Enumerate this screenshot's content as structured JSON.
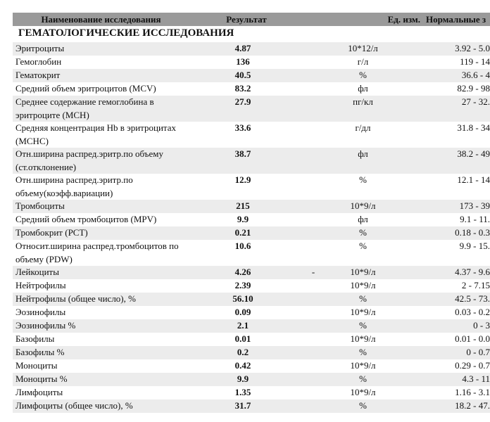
{
  "header": {
    "columns": [
      "Наименование исследования",
      "Результат",
      "Ед. изм.",
      "Нормальные з"
    ]
  },
  "section": "ГЕМАТОЛОГИЧЕСКИЕ ИССЛЕДОВАНИЯ",
  "rows": [
    {
      "name": "Эритроциты",
      "result": "4.87",
      "unit": "10*12/л",
      "range": "3.92 - 5.0"
    },
    {
      "name": "Гемоглобин",
      "result": "136",
      "unit": "г/л",
      "range": "119 - 14"
    },
    {
      "name": "Гематокрит",
      "result": "40.5",
      "unit": "%",
      "range": "36.6 - 4"
    },
    {
      "name": "Средний объем эритроцитов (MCV)",
      "result": "83.2",
      "unit": "фл",
      "range": "82.9 - 98"
    },
    {
      "name": "Среднее содержание гемоглобина в эритроците (MCH)",
      "result": "27.9",
      "unit": "пг/кл",
      "range": "27 - 32."
    },
    {
      "name": "Средняя концентрация Hb в эритроцитах (MCHC)",
      "result": "33.6",
      "unit": "г/дл",
      "range": "31.8 - 34"
    },
    {
      "name": "Отн.ширина распред.эритр.по объему (ст.отклонение)",
      "result": "38.7",
      "unit": "фл",
      "range": "38.2 - 49"
    },
    {
      "name": "Отн.ширина распред.эритр.по объему(коэфф.вариации)",
      "result": "12.9",
      "unit": "%",
      "range": "12.1 - 14"
    },
    {
      "name": "Тромбоциты",
      "result": "215",
      "unit": "10*9/л",
      "range": "173 - 39"
    },
    {
      "name": "Средний объем тромбоцитов (MPV)",
      "result": "9.9",
      "unit": "фл",
      "range": "9.1 - 11."
    },
    {
      "name": "Тромбокрит (PCT)",
      "result": "0.21",
      "unit": "%",
      "range": "0.18 - 0.3"
    },
    {
      "name": "Относит.ширина распред.тромбоцитов по объему (PDW)",
      "result": "10.6",
      "unit": "%",
      "range": "9.9 - 15."
    },
    {
      "name": "Лейкоциты",
      "result": "4.26",
      "flag": "-",
      "unit": "10*9/л",
      "range": "4.37 - 9.6"
    },
    {
      "name": "Нейтрофилы",
      "result": "2.39",
      "unit": "10*9/л",
      "range": "2 - 7.15"
    },
    {
      "name": "Нейтрофилы (общее число), %",
      "result": "56.10",
      "unit": "%",
      "range": "42.5 - 73."
    },
    {
      "name": "Эозинофилы",
      "result": "0.09",
      "unit": "10*9/л",
      "range": "0.03 - 0.2"
    },
    {
      "name": "Эозинофилы %",
      "result": "2.1",
      "unit": "%",
      "range": "0 - 3"
    },
    {
      "name": "Базофилы",
      "result": "0.01",
      "unit": "10*9/л",
      "range": "0.01 - 0.0"
    },
    {
      "name": "Базофилы %",
      "result": "0.2",
      "unit": "%",
      "range": "0 - 0.7"
    },
    {
      "name": "Моноциты",
      "result": "0.42",
      "unit": "10*9/л",
      "range": "0.29 - 0.7"
    },
    {
      "name": "Моноциты %",
      "result": "9.9",
      "unit": "%",
      "range": "4.3 - 11"
    },
    {
      "name": "Лимфоциты",
      "result": "1.35",
      "unit": "10*9/л",
      "range": "1.16 - 3.1"
    },
    {
      "name": "Лимфоциты (общее число), %",
      "result": "31.7",
      "unit": "%",
      "range": "18.2 - 47."
    }
  ]
}
